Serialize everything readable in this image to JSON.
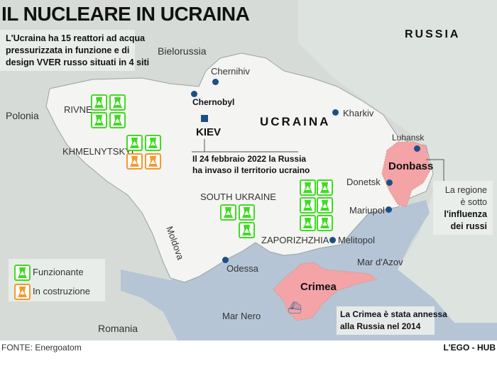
{
  "title": "IL NUCLEARE IN UCRAINA",
  "intro": [
    "L'Ucraina ha 15 reattori ad acqua",
    "pressurizzata in funzione e di",
    "design VVER russo situati in 4 siti"
  ],
  "countries": {
    "russia": "RUSSIA",
    "ukraine": "UCRAINA",
    "belarus": "Bielorussia",
    "poland": "Polonia",
    "moldova": "Moldova",
    "romania": "Romania"
  },
  "seas": {
    "black": "Mar Nero",
    "azov": "Mar d'Azov"
  },
  "cities": {
    "chernihiv": "Chernihiv",
    "chernobyl": "Chernobyl",
    "kiev": "KIEV",
    "kharkiv": "Kharkiv",
    "luhansk": "Luhansk",
    "donetsk": "Donetsk",
    "mariupol": "Mariupol",
    "melitopol": "Melitopol",
    "odessa": "Odessa"
  },
  "regions": {
    "donbass": "Donbass",
    "crimea": "Crimea"
  },
  "invasion_note": [
    "Il 24 febbraio 2022 la Russia",
    "ha invaso il territorio ucraino"
  ],
  "donbass_note": [
    "La regione",
    "è sotto",
    "l'influenza",
    "dei russi"
  ],
  "crimea_note": [
    "La Crimea è stata annessa",
    "alla Russia nel 2014"
  ],
  "sites": [
    {
      "name": "RIVNE",
      "reactors": [
        "operating",
        "operating",
        "operating",
        "operating"
      ]
    },
    {
      "name": "KHMELNYTSKYI",
      "reactors": [
        "operating",
        "operating",
        "construction",
        "construction"
      ]
    },
    {
      "name": "SOUTH UKRAINE",
      "reactors": [
        "operating",
        "operating",
        "operating"
      ]
    },
    {
      "name": "ZAPORIZHZHIA",
      "reactors": [
        "operating",
        "operating",
        "operating",
        "operating",
        "operating",
        "operating"
      ]
    }
  ],
  "legend": {
    "operating": "Funzionante",
    "construction": "In costruzione"
  },
  "colors": {
    "operating": "#3fdc22",
    "construction": "#f39a2e",
    "occupied": "#f4a3a6",
    "sea": "#b5c5d5",
    "city": "#1c4f86"
  },
  "footer": {
    "source": "FONTE: Energoatom",
    "credit": "L'EGO - HUB"
  }
}
